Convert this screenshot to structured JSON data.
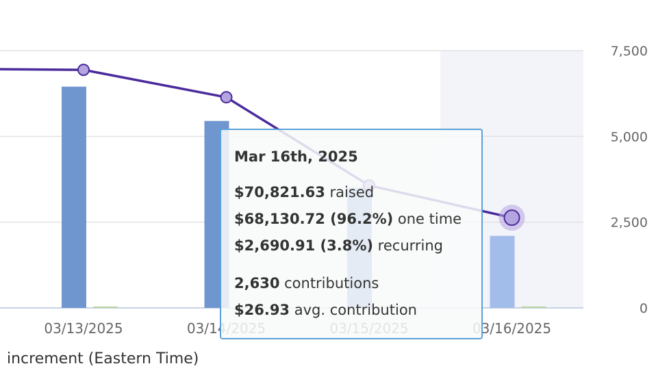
{
  "chart_data": {
    "type": "bar+line",
    "categories": [
      "03/13/2025",
      "03/14/2025",
      "03/15/2025",
      "03/16/2025"
    ],
    "series": [
      {
        "type": "bar",
        "color": "#7096d0",
        "highlight_color": "#a3bdea",
        "values": [
          6450,
          5450,
          3500,
          2100
        ]
      },
      {
        "type": "bar",
        "color": "#b8d4a0",
        "values": [
          40,
          50,
          50,
          40
        ]
      },
      {
        "type": "line",
        "color": "#4a2b9b",
        "marker_color": "#b4a4e0",
        "values": [
          6940,
          6140,
          3570,
          2630
        ]
      }
    ],
    "leading_line_value": 6960,
    "y_ticks": [
      "0",
      "2,500",
      "5,000",
      "7,500"
    ],
    "y_tick_values": [
      0,
      2500,
      5000,
      7500
    ],
    "ylim": [
      0,
      7500
    ],
    "grid": true,
    "highlighted_category": "03/16/2025",
    "xlabel": "increment (Eastern Time)"
  },
  "tooltip": {
    "title": "Mar 16th, 2025",
    "raised_value": "$70,821.63",
    "raised_label": " raised",
    "onetime_value": "$68,130.72 (96.2%)",
    "onetime_label": " one time",
    "recurring_value": "$2,690.91 (3.8%)",
    "recurring_label": " recurring",
    "contrib_value": "2,630",
    "contrib_label": " contributions",
    "avg_value": "$26.93",
    "avg_label": " avg. contribution"
  }
}
